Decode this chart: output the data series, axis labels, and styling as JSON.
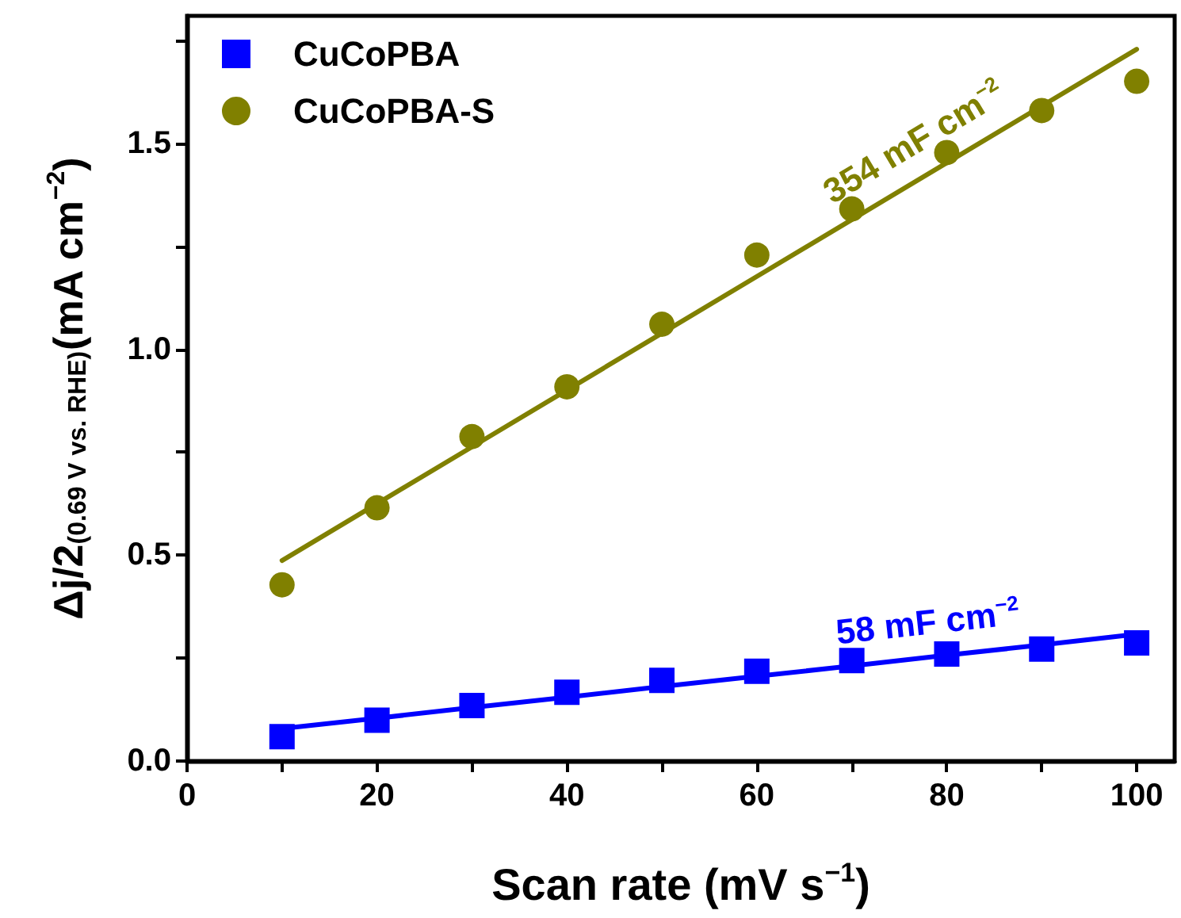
{
  "chart_data": {
    "type": "scatter",
    "xlabel": "Scan rate (mV s$^{−1}$)",
    "ylabel": "Δj/2$_{(0.69 V vs. RHE)}$(mA cm$^{−2}$)",
    "x": [
      10,
      20,
      30,
      40,
      50,
      60,
      70,
      80,
      90,
      100
    ],
    "series": [
      {
        "name": "CuCoPBA",
        "color": "#0000ff",
        "marker": "square",
        "values": [
          0.059,
          0.099,
          0.135,
          0.167,
          0.196,
          0.218,
          0.244,
          0.26,
          0.272,
          0.287
        ]
      },
      {
        "name": "CuCoPBA-S",
        "color": "#808000",
        "marker": "circle",
        "values": [
          0.428,
          0.615,
          0.788,
          0.909,
          1.061,
          1.229,
          1.341,
          1.478,
          1.58,
          1.651
        ]
      },
      {
        "type": "line",
        "color": "#808000",
        "marker": "none",
        "values": [
          0.487,
          0.625,
          0.763,
          0.901,
          1.039,
          1.177,
          1.315,
          1.453,
          1.591,
          1.729
        ]
      },
      {
        "type": "line",
        "color": "#0000ff",
        "marker": "none",
        "values": [
          0.079,
          0.104,
          0.13,
          0.155,
          0.181,
          0.206,
          0.231,
          0.257,
          0.282,
          0.308
        ]
      }
    ],
    "annotations": [
      "354 mF cm$^{−2}$",
      "58 mF cm$^{−2}$"
    ],
    "xlim": [
      0,
      104
    ],
    "ylim": [
      0,
      1.81
    ],
    "xticks": [
      0,
      {
        "value": 10,
        "label": null
      },
      20,
      {
        "value": 30,
        "label": null
      },
      40,
      {
        "value": 50,
        "label": null
      },
      60,
      {
        "value": 70,
        "label": null
      },
      80,
      {
        "value": 90,
        "label": null
      },
      100
    ],
    "yticks": [
      {
        "value": 0,
        "label": "0.0"
      },
      {
        "value": 0.25,
        "label": null
      },
      {
        "value": 0.5,
        "label": "0.5"
      },
      {
        "value": 0.75,
        "label": null
      },
      {
        "value": 1,
        "label": "1.0"
      },
      {
        "value": 1.25,
        "label": null
      },
      {
        "value": 1.5,
        "label": "1.5"
      },
      {
        "value": 1.75,
        "label": null
      }
    ],
    "grid": false,
    "legend": "top left"
  }
}
